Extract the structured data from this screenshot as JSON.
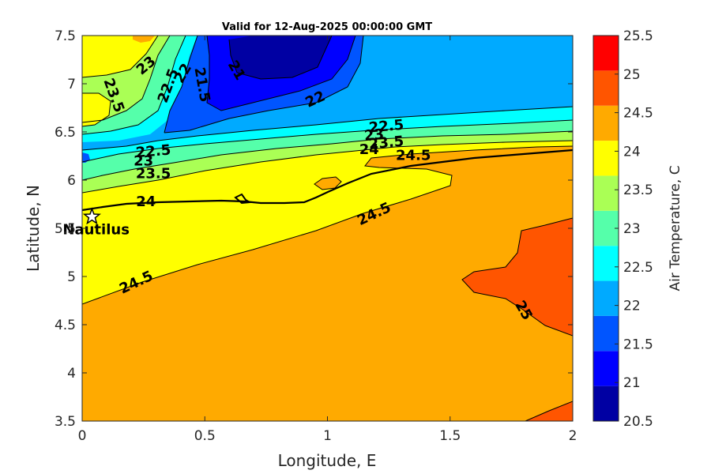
{
  "chart_data": {
    "type": "contour",
    "title": "Valid for 12-Aug-2025 00:00:00 GMT",
    "xlabel": "Longitude, E",
    "ylabel": "Latitude, N",
    "xlim": [
      0,
      2
    ],
    "ylim": [
      3.5,
      7.5
    ],
    "xticks": [
      "0",
      "0.5",
      "1",
      "1.5",
      "2"
    ],
    "yticks": [
      "3.5",
      "4",
      "4.5",
      "5",
      "5.5",
      "6",
      "6.5",
      "7",
      "7.5"
    ],
    "colorbar": {
      "label": "Air Temperature, C",
      "range": [
        20.5,
        25.5
      ],
      "ticks": [
        "20.5",
        "21",
        "21.5",
        "22",
        "22.5",
        "23",
        "23.5",
        "24",
        "24.5",
        "25",
        "25.5"
      ],
      "colors": [
        "#0000a3",
        "#0000ff",
        "#0055ff",
        "#00aaff",
        "#00ffff",
        "#55ffaa",
        "#aaff55",
        "#ffff00",
        "#ffaa00",
        "#ff5500",
        "#ff0000"
      ]
    },
    "contour_levels": [
      21,
      21.5,
      22,
      22.5,
      23,
      23.5,
      24,
      24.5,
      25
    ],
    "contour_labels": [
      {
        "text": "21",
        "x": 0.63,
        "y": 7.14,
        "angle": 60
      },
      {
        "text": "21.5",
        "x": 0.49,
        "y": 6.99,
        "angle": 80
      },
      {
        "text": "22",
        "x": 0.41,
        "y": 7.11,
        "angle": -60
      },
      {
        "text": "22.5",
        "x": 0.35,
        "y": 6.98,
        "angle": -70
      },
      {
        "text": "23",
        "x": 0.26,
        "y": 7.19,
        "angle": -40
      },
      {
        "text": "23.5",
        "x": 0.13,
        "y": 6.88,
        "angle": 70
      },
      {
        "text": "22",
        "x": 0.95,
        "y": 6.84,
        "angle": -25
      },
      {
        "text": "22.5",
        "x": 1.24,
        "y": 6.56,
        "angle": -5
      },
      {
        "text": "23",
        "x": 1.19,
        "y": 6.47,
        "angle": -5
      },
      {
        "text": "23.5",
        "x": 1.24,
        "y": 6.39,
        "angle": -5
      },
      {
        "text": "24",
        "x": 1.17,
        "y": 6.32,
        "angle": 0
      },
      {
        "text": "24.5",
        "x": 1.35,
        "y": 6.26,
        "angle": 0
      },
      {
        "text": "22.5",
        "x": 0.29,
        "y": 6.3,
        "angle": -5
      },
      {
        "text": "23",
        "x": 0.25,
        "y": 6.2,
        "angle": 0
      },
      {
        "text": "23.5",
        "x": 0.29,
        "y": 6.07,
        "angle": 0
      },
      {
        "text": "24",
        "x": 0.26,
        "y": 5.78,
        "angle": 0
      },
      {
        "text": "24.5",
        "x": 0.22,
        "y": 4.94,
        "angle": -25
      },
      {
        "text": "24.5",
        "x": 1.19,
        "y": 5.65,
        "angle": -25
      },
      {
        "text": "25",
        "x": 1.8,
        "y": 4.65,
        "angle": 60
      }
    ],
    "marker": {
      "label": "Nautilus",
      "x": 0.04,
      "y": 5.62
    }
  }
}
